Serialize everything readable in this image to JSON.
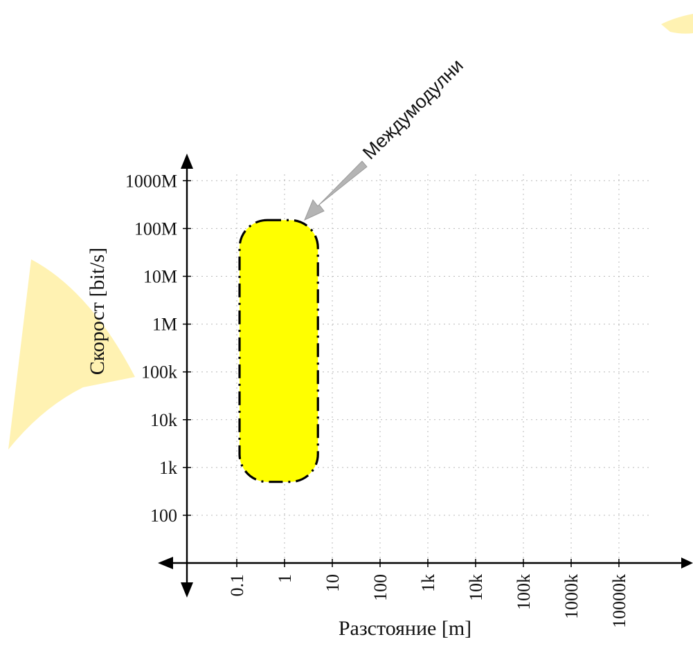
{
  "chart_data": {
    "type": "area",
    "xlabel": "Разстояние [m]",
    "ylabel": "Скорост [bit/s]",
    "x_scale": "log",
    "y_scale": "log",
    "x_ticks": [
      "0.1",
      "1",
      "10",
      "100",
      "1k",
      "10k",
      "100k",
      "1000k",
      "10000k"
    ],
    "y_ticks": [
      "100",
      "1k",
      "10k",
      "100k",
      "1M",
      "10M",
      "100M",
      "1000M"
    ],
    "xlim": [
      0.1,
      10000000
    ],
    "ylim": [
      100,
      1000000000
    ],
    "grid": true,
    "region": {
      "label": "Междумодулни",
      "x_range_m": [
        0.1,
        5
      ],
      "y_range_bits": [
        500,
        150000000
      ],
      "fill": "#ffff00",
      "border": "dash-dot black"
    }
  },
  "colors": {
    "region_fill": "#ffff00",
    "arrow": "#b4b4b4",
    "watermark": "#fff3b0"
  }
}
